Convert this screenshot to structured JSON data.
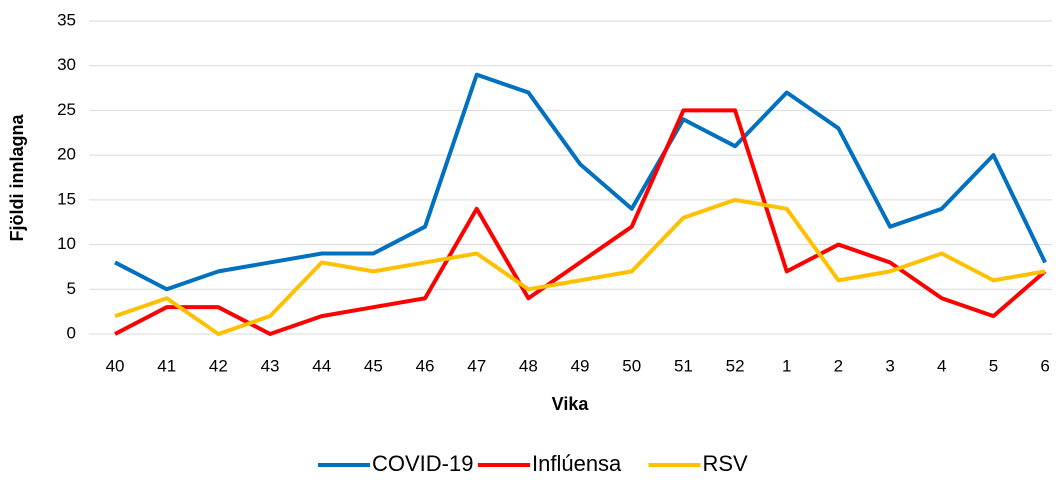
{
  "chart_data": {
    "type": "line",
    "x_label": "Vika",
    "y_label": "Fjöldi innlagna",
    "categories": [
      "40",
      "41",
      "42",
      "43",
      "44",
      "45",
      "46",
      "47",
      "48",
      "49",
      "50",
      "51",
      "52",
      "1",
      "2",
      "3",
      "4",
      "5",
      "6"
    ],
    "series": [
      {
        "name": "COVID-19",
        "color": "#0070c0",
        "values": [
          8,
          5,
          7,
          8,
          9,
          9,
          12,
          29,
          27,
          19,
          14,
          24,
          21,
          27,
          23,
          12,
          14,
          20,
          8
        ]
      },
      {
        "name": "Inflúensa",
        "color": "#ff0000",
        "values": [
          0,
          3,
          3,
          0,
          2,
          3,
          4,
          14,
          4,
          8,
          12,
          25,
          25,
          7,
          10,
          8,
          4,
          2,
          7
        ]
      },
      {
        "name": "RSV",
        "color": "#ffc000",
        "values": [
          2,
          4,
          0,
          2,
          8,
          7,
          8,
          9,
          5,
          6,
          7,
          13,
          15,
          14,
          6,
          7,
          9,
          6,
          7
        ]
      }
    ],
    "ylim": [
      0,
      35
    ],
    "yticks": [
      0,
      5,
      10,
      15,
      20,
      25,
      30,
      35
    ],
    "grid": true,
    "legend": "bottom"
  }
}
